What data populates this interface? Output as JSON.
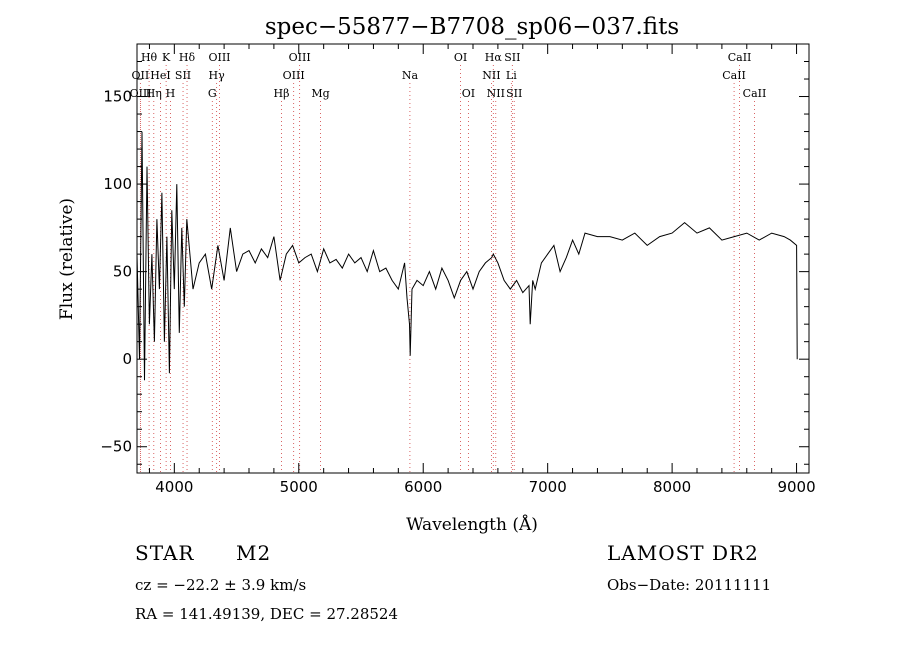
{
  "chart_data": {
    "type": "line",
    "title": "spec−55877−B7708_sp06−037.fits",
    "xlabel": "Wavelength (Å)",
    "ylabel": "Flux (relative)",
    "xlim": [
      3700,
      9100
    ],
    "ylim": [
      -65,
      180
    ],
    "x_ticks": [
      4000,
      5000,
      6000,
      7000,
      8000,
      9000
    ],
    "y_ticks": [
      -50,
      0,
      50,
      100,
      150
    ],
    "x_ticklabels": [
      "4000",
      "5000",
      "6000",
      "7000",
      "8000",
      "9000"
    ],
    "y_ticklabels": [
      "−50",
      "0",
      "50",
      "100",
      "150"
    ],
    "grid": false,
    "series": [
      {
        "x": [
          3700,
          3720,
          3740,
          3760,
          3780,
          3800,
          3820,
          3840,
          3860,
          3880,
          3900,
          3920,
          3940,
          3960,
          3980,
          4000,
          4020,
          4040,
          4060,
          4080,
          4100,
          4150,
          4200,
          4250,
          4300,
          4350,
          4400,
          4450,
          4500,
          4550,
          4600,
          4650,
          4700,
          4750,
          4800,
          4850,
          4900,
          4950,
          5000,
          5050,
          5100,
          5150,
          5200,
          5250,
          5300,
          5350,
          5400,
          5450,
          5500,
          5550,
          5600,
          5650,
          5700,
          5750,
          5800,
          5850,
          5870,
          5890,
          5895,
          5910,
          5950,
          6000,
          6050,
          6100,
          6150,
          6200,
          6250,
          6300,
          6350,
          6400,
          6450,
          6500,
          6550,
          6563,
          6600,
          6650,
          6700,
          6750,
          6800,
          6850,
          6860,
          6880,
          6900,
          6950,
          7000,
          7050,
          7100,
          7150,
          7200,
          7250,
          7300,
          7400,
          7500,
          7600,
          7700,
          7800,
          7900,
          8000,
          8100,
          8200,
          8300,
          8400,
          8500,
          8600,
          8700,
          8800,
          8900,
          8950,
          9000,
          9005
        ],
        "values": [
          60,
          0,
          130,
          -12,
          110,
          20,
          60,
          10,
          80,
          40,
          95,
          10,
          70,
          -8,
          85,
          40,
          100,
          15,
          75,
          30,
          80,
          40,
          55,
          60,
          40,
          65,
          45,
          75,
          50,
          60,
          62,
          55,
          63,
          58,
          70,
          45,
          60,
          65,
          55,
          58,
          60,
          50,
          63,
          55,
          57,
          52,
          60,
          55,
          58,
          50,
          62,
          50,
          52,
          45,
          40,
          55,
          35,
          20,
          2,
          40,
          45,
          42,
          50,
          40,
          52,
          45,
          35,
          45,
          50,
          40,
          50,
          55,
          58,
          60,
          55,
          45,
          40,
          45,
          38,
          42,
          20,
          45,
          40,
          55,
          60,
          65,
          50,
          58,
          68,
          60,
          72,
          70,
          70,
          68,
          72,
          65,
          70,
          72,
          78,
          72,
          75,
          68,
          70,
          72,
          68,
          72,
          70,
          68,
          65,
          0
        ]
      }
    ],
    "line_markers": [
      {
        "label": "Hθ",
        "x": 3797,
        "row": 0
      },
      {
        "label": "OII",
        "x": 3727,
        "row": 1
      },
      {
        "label": "OIII",
        "x": 3729,
        "row": 2
      },
      {
        "label": "K",
        "x": 3934,
        "row": 0
      },
      {
        "label": "Hδ",
        "x": 4102,
        "row": 0
      },
      {
        "label": "HeI",
        "x": 3889,
        "row": 1
      },
      {
        "label": "SII",
        "x": 4070,
        "row": 1
      },
      {
        "label": "Hη",
        "x": 3835,
        "row": 2
      },
      {
        "label": "H",
        "x": 3969,
        "row": 2
      },
      {
        "label": "OIII",
        "x": 4363,
        "row": 0
      },
      {
        "label": "Hγ",
        "x": 4340,
        "row": 1
      },
      {
        "label": "G",
        "x": 4305,
        "row": 2
      },
      {
        "label": "OIII",
        "x": 5007,
        "row": 0
      },
      {
        "label": "OIII",
        "x": 4959,
        "row": 1
      },
      {
        "label": "Hβ",
        "x": 4861,
        "row": 2
      },
      {
        "label": "Mg",
        "x": 5175,
        "row": 2
      },
      {
        "label": "Na",
        "x": 5893,
        "row": 1
      },
      {
        "label": "OI",
        "x": 6300,
        "row": 0
      },
      {
        "label": "OI",
        "x": 6363,
        "row": 2
      },
      {
        "label": "Hα",
        "x": 6563,
        "row": 0
      },
      {
        "label": "SII",
        "x": 6716,
        "row": 0
      },
      {
        "label": "NII",
        "x": 6548,
        "row": 1
      },
      {
        "label": "Li",
        "x": 6708,
        "row": 1
      },
      {
        "label": "NII",
        "x": 6583,
        "row": 2
      },
      {
        "label": "SII",
        "x": 6731,
        "row": 2
      },
      {
        "label": "CaII",
        "x": 8542,
        "row": 0
      },
      {
        "label": "CaII",
        "x": 8498,
        "row": 1
      },
      {
        "label": "CaII",
        "x": 8662,
        "row": 2
      }
    ]
  },
  "info": {
    "object_class": "STAR",
    "subclass": "M2",
    "survey": "LAMOST DR2",
    "velocity": "cz = −22.2 ± 3.9 km/s",
    "obs_date": "Obs−Date: 20111111",
    "coords": "RA = 141.49139, DEC =  27.28524"
  },
  "colors": {
    "spectrum": "#000000",
    "marker_line": "#d04040",
    "marker_dots": "#555555"
  }
}
